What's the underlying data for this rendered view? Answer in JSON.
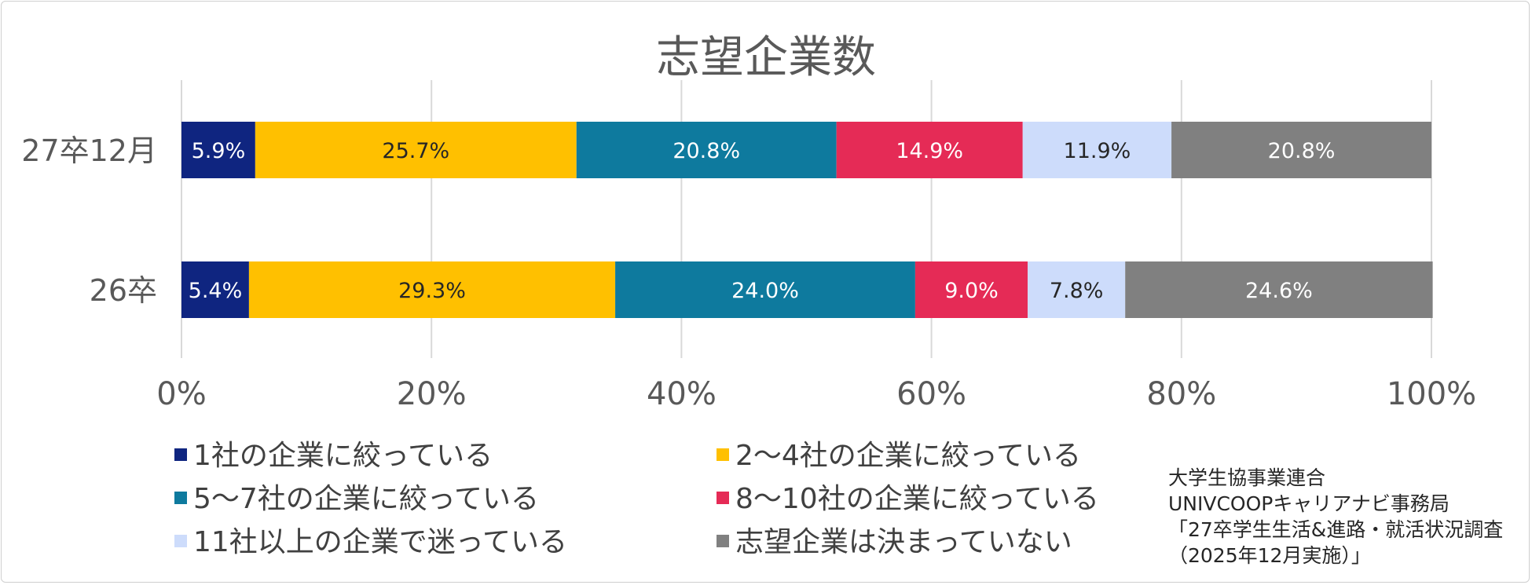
{
  "chart_data": {
    "type": "bar",
    "orientation": "horizontal",
    "stacked": true,
    "title": "志望企業数",
    "categories": [
      "27卒12月",
      "26卒"
    ],
    "series": [
      {
        "name": "1社の企業に絞っている",
        "color": "#0f2580",
        "label_color": "#ffffff",
        "values": [
          5.9,
          5.4
        ],
        "labels": [
          "5.9%",
          "5.4%"
        ]
      },
      {
        "name": "2～4社の企業に絞っている",
        "color": "#ffc000",
        "label_color": "#262626",
        "values": [
          25.7,
          29.3
        ],
        "labels": [
          "25.7%",
          "29.3%"
        ]
      },
      {
        "name": "5～7社の企業に絞っている",
        "color": "#0e7a9e",
        "label_color": "#ffffff",
        "values": [
          20.8,
          24.0
        ],
        "labels": [
          "20.8%",
          "24.0%"
        ]
      },
      {
        "name": "8～10社の企業に絞っている",
        "color": "#e52b56",
        "label_color": "#ffffff",
        "values": [
          14.9,
          9.0
        ],
        "labels": [
          "14.9%",
          "9.0%"
        ]
      },
      {
        "name": "11社以上の企業で迷っている",
        "color": "#cddcfb",
        "label_color": "#262626",
        "values": [
          11.9,
          7.8
        ],
        "labels": [
          "11.9%",
          "7.8%"
        ]
      },
      {
        "name": "志望企業は決まっていない",
        "color": "#808080",
        "label_color": "#ffffff",
        "values": [
          20.8,
          24.6
        ],
        "labels": [
          "20.8%",
          "24.6%"
        ]
      }
    ],
    "xlim": [
      0,
      100
    ],
    "xticks": [
      0,
      20,
      40,
      60,
      80,
      100
    ],
    "xtick_labels": [
      "0%",
      "20%",
      "40%",
      "60%",
      "80%",
      "100%"
    ],
    "grid": true,
    "legend_position": "bottom"
  },
  "source": {
    "lines": [
      "大学生協事業連合",
      "UNIVCOOPキャリアナビ事務局",
      "「27卒学生生活&進路・就活状況調査",
      "（2025年12月実施）」"
    ]
  }
}
